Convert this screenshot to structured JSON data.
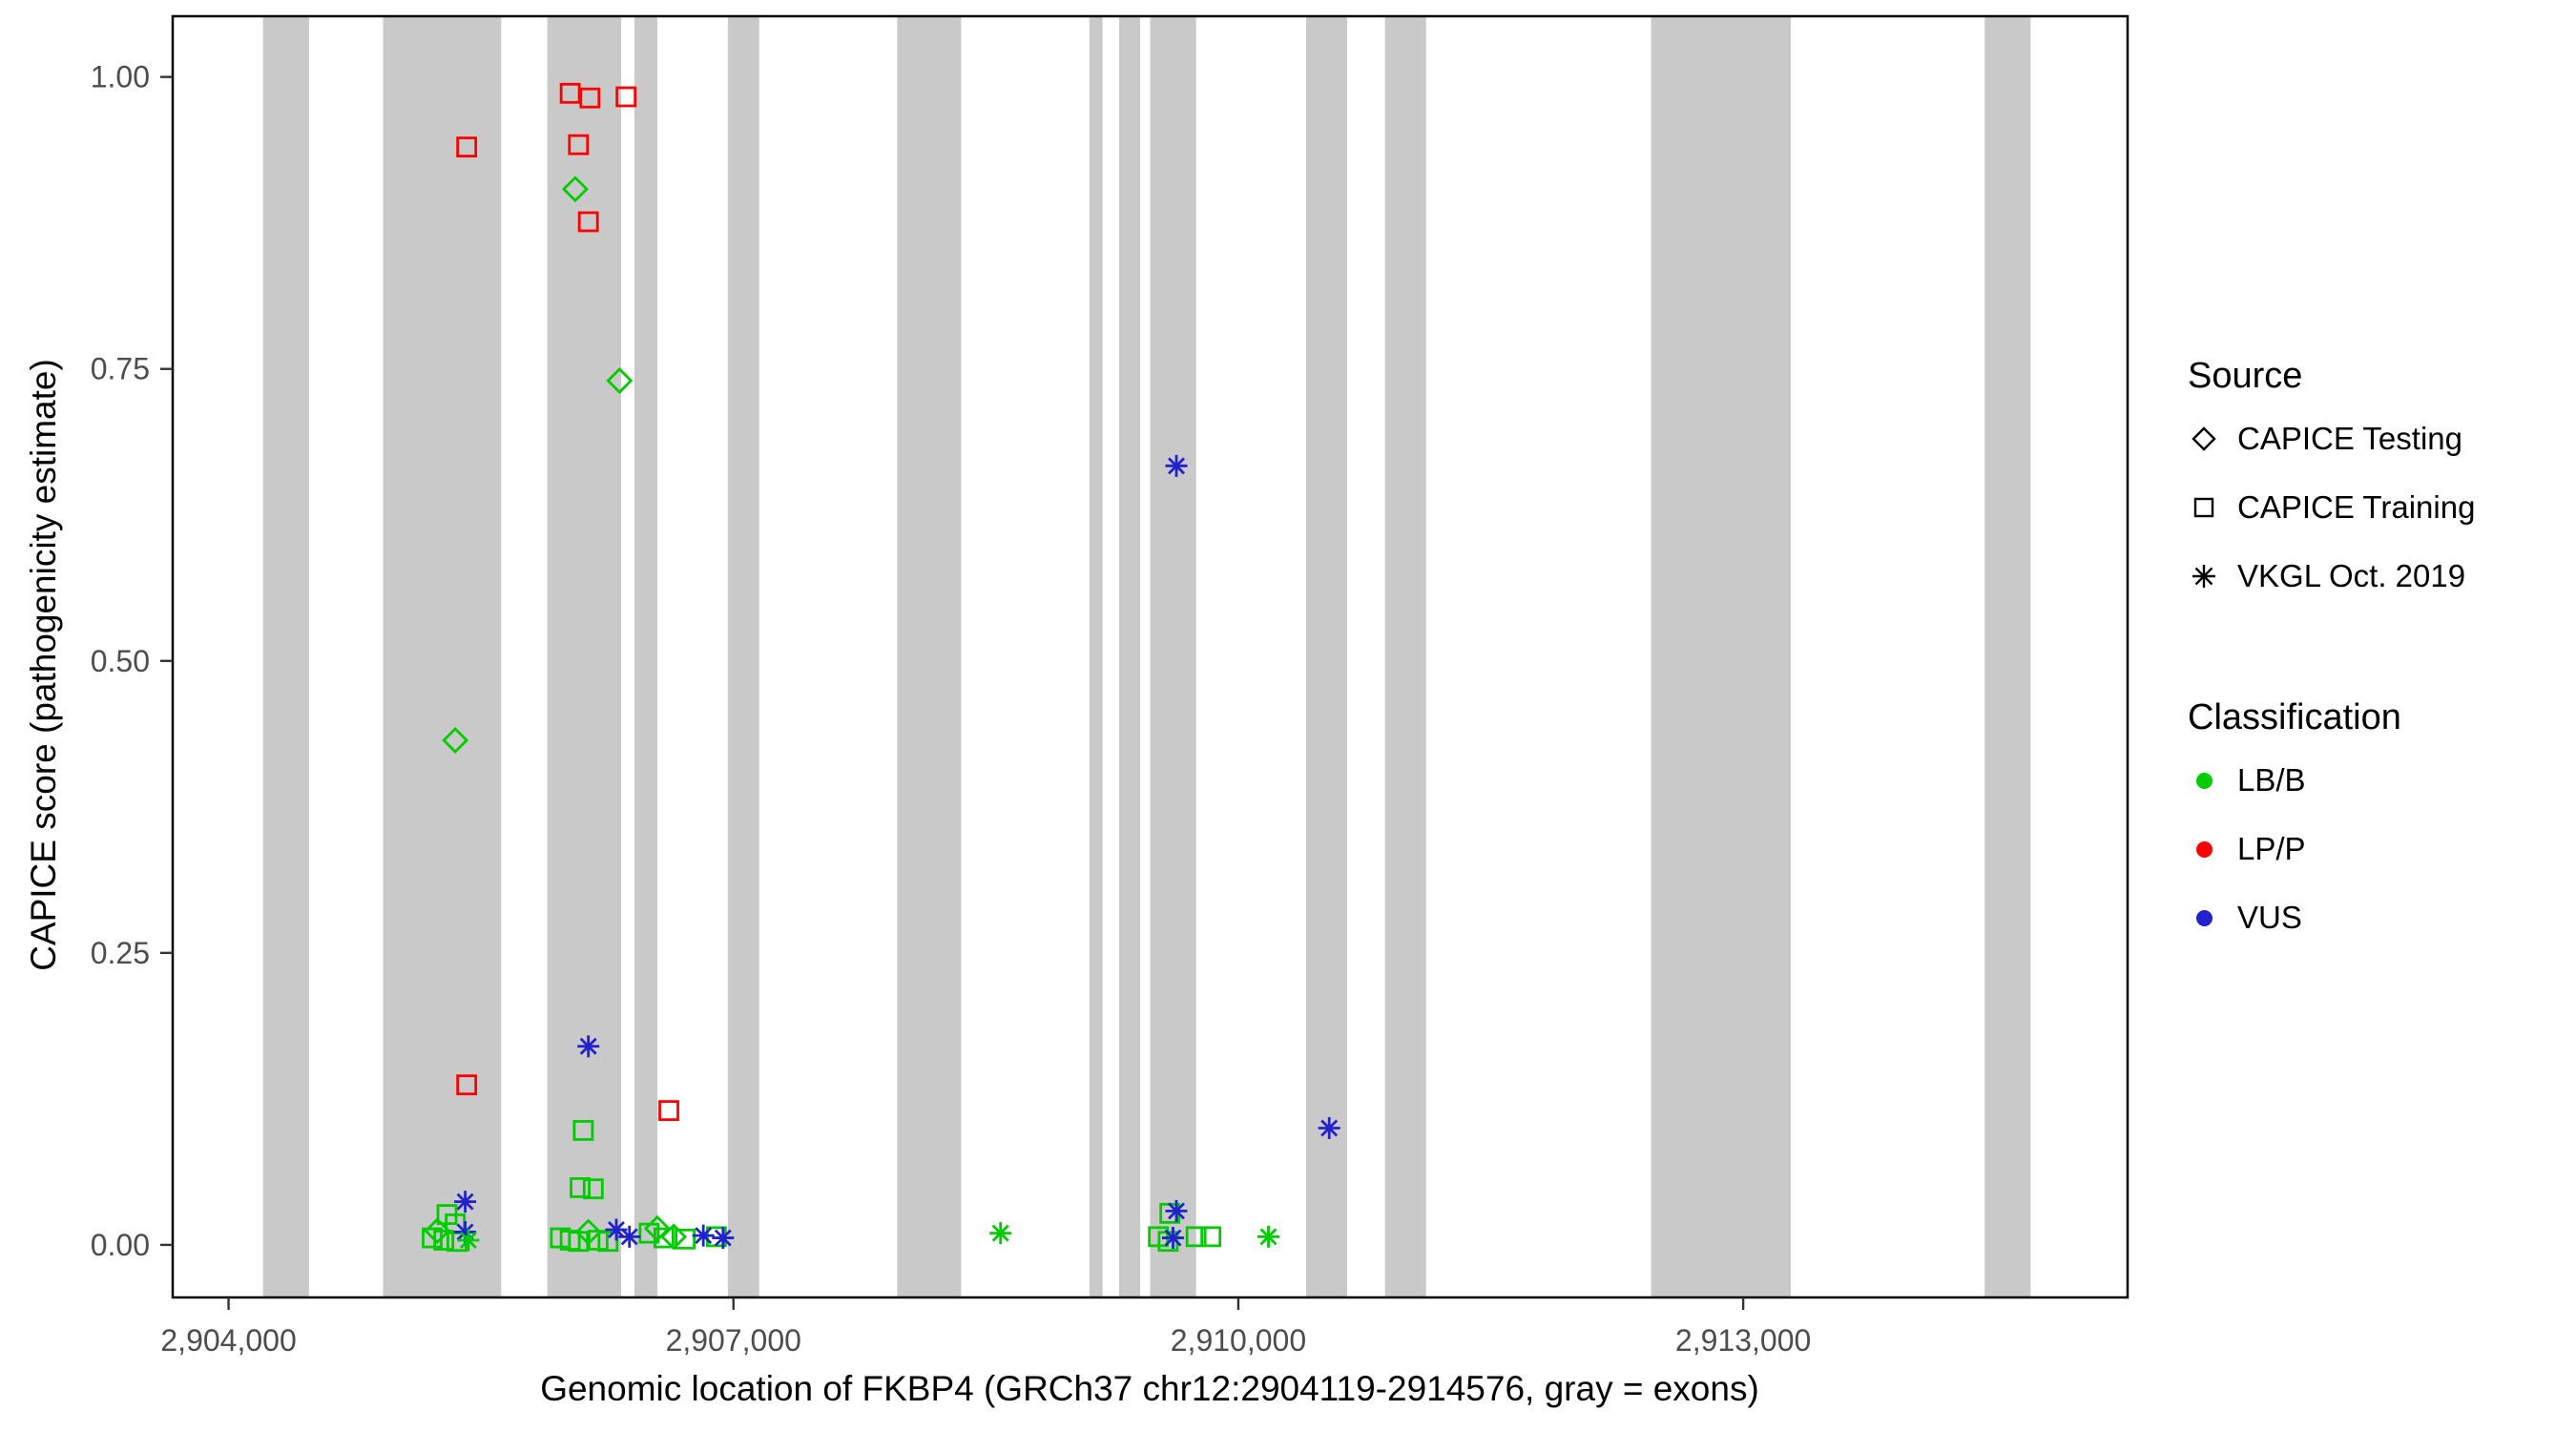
{
  "chart_data": {
    "type": "scatter",
    "title": "",
    "xlabel": "Genomic location of FKBP4 (GRCh37 chr12:2904119-2914576, gray = exons)",
    "ylabel": "CAPICE score (pathogenicity estimate)",
    "xlim": [
      2903668,
      2915284
    ],
    "ylim": [
      -0.045,
      1.052
    ],
    "grid": false,
    "legend_position": "right",
    "x_ticks": [
      {
        "value": 2904000,
        "label": "2,904,000"
      },
      {
        "value": 2907000,
        "label": "2,907,000"
      },
      {
        "value": 2910000,
        "label": "2,910,000"
      },
      {
        "value": 2913000,
        "label": "2,913,000"
      }
    ],
    "y_ticks": [
      {
        "value": 0,
        "label": "0.00"
      },
      {
        "value": 0.25,
        "label": "0.25"
      },
      {
        "value": 0.5,
        "label": "0.50"
      },
      {
        "value": 0.75,
        "label": "0.75"
      },
      {
        "value": 1,
        "label": "1.00"
      }
    ],
    "exon_color": "#C9C9C9",
    "exons": [
      [
        2904205,
        2904478
      ],
      [
        2904918,
        2905620
      ],
      [
        2905894,
        2906333
      ],
      [
        2906411,
        2906548
      ],
      [
        2906967,
        2907153
      ],
      [
        2907973,
        2908353
      ],
      [
        2909115,
        2909193
      ],
      [
        2909291,
        2909417
      ],
      [
        2909476,
        2909749
      ],
      [
        2910403,
        2910647
      ],
      [
        2910872,
        2911116
      ],
      [
        2912453,
        2913283
      ],
      [
        2914435,
        2914708
      ]
    ],
    "points": [
      {
        "x": 2905415,
        "y": 0.94,
        "src": "training",
        "cls": "LP/P"
      },
      {
        "x": 2906030,
        "y": 0.986,
        "src": "training",
        "cls": "LP/P"
      },
      {
        "x": 2906147,
        "y": 0.982,
        "src": "training",
        "cls": "LP/P"
      },
      {
        "x": 2906079,
        "y": 0.942,
        "src": "training",
        "cls": "LP/P"
      },
      {
        "x": 2906362,
        "y": 0.983,
        "src": "training",
        "cls": "LP/P"
      },
      {
        "x": 2906138,
        "y": 0.876,
        "src": "training",
        "cls": "LP/P"
      },
      {
        "x": 2905415,
        "y": 0.137,
        "src": "training",
        "cls": "LP/P"
      },
      {
        "x": 2906616,
        "y": 0.115,
        "src": "training",
        "cls": "LP/P"
      },
      {
        "x": 2906060,
        "y": 0.904,
        "src": "testing",
        "cls": "LB/B"
      },
      {
        "x": 2906323,
        "y": 0.74,
        "src": "testing",
        "cls": "LB/B"
      },
      {
        "x": 2905347,
        "y": 0.432,
        "src": "testing",
        "cls": "LB/B"
      },
      {
        "x": 2905240,
        "y": 0.012,
        "src": "testing",
        "cls": "LB/B"
      },
      {
        "x": 2906138,
        "y": 0.011,
        "src": "testing",
        "cls": "LB/B"
      },
      {
        "x": 2906547,
        "y": 0.014,
        "src": "testing",
        "cls": "LB/B"
      },
      {
        "x": 2906645,
        "y": 0.007,
        "src": "testing",
        "cls": "LB/B"
      },
      {
        "x": 2906108,
        "y": 0.098,
        "src": "training",
        "cls": "LB/B"
      },
      {
        "x": 2906089,
        "y": 0.049,
        "src": "training",
        "cls": "LB/B"
      },
      {
        "x": 2906167,
        "y": 0.048,
        "src": "training",
        "cls": "LB/B"
      },
      {
        "x": 2905298,
        "y": 0.026,
        "src": "training",
        "cls": "LB/B"
      },
      {
        "x": 2905347,
        "y": 0.018,
        "src": "training",
        "cls": "LB/B"
      },
      {
        "x": 2905210,
        "y": 0.006,
        "src": "training",
        "cls": "LB/B"
      },
      {
        "x": 2905279,
        "y": 0.004,
        "src": "training",
        "cls": "LB/B"
      },
      {
        "x": 2905357,
        "y": 0.003,
        "src": "training",
        "cls": "LB/B"
      },
      {
        "x": 2905972,
        "y": 0.006,
        "src": "training",
        "cls": "LB/B"
      },
      {
        "x": 2906030,
        "y": 0.004,
        "src": "training",
        "cls": "LB/B"
      },
      {
        "x": 2906079,
        "y": 0.003,
        "src": "training",
        "cls": "LB/B"
      },
      {
        "x": 2906196,
        "y": 0.004,
        "src": "training",
        "cls": "LB/B"
      },
      {
        "x": 2906255,
        "y": 0.003,
        "src": "training",
        "cls": "LB/B"
      },
      {
        "x": 2906499,
        "y": 0.01,
        "src": "training",
        "cls": "LB/B"
      },
      {
        "x": 2906587,
        "y": 0.006,
        "src": "training",
        "cls": "LB/B"
      },
      {
        "x": 2906713,
        "y": 0.005,
        "src": "training",
        "cls": "LB/B"
      },
      {
        "x": 2906899,
        "y": 0.007,
        "src": "training",
        "cls": "LB/B"
      },
      {
        "x": 2909525,
        "y": 0.007,
        "src": "training",
        "cls": "LB/B"
      },
      {
        "x": 2909583,
        "y": 0.003,
        "src": "training",
        "cls": "LB/B"
      },
      {
        "x": 2909749,
        "y": 0.007,
        "src": "training",
        "cls": "LB/B"
      },
      {
        "x": 2909837,
        "y": 0.007,
        "src": "training",
        "cls": "LB/B"
      },
      {
        "x": 2909593,
        "y": 0.027,
        "src": "training",
        "cls": "LB/B"
      },
      {
        "x": 2909632,
        "y": 0.667,
        "src": "vkgl",
        "cls": "VUS"
      },
      {
        "x": 2906138,
        "y": 0.17,
        "src": "vkgl",
        "cls": "VUS"
      },
      {
        "x": 2910540,
        "y": 0.1,
        "src": "vkgl",
        "cls": "VUS"
      },
      {
        "x": 2905406,
        "y": 0.037,
        "src": "vkgl",
        "cls": "VUS"
      },
      {
        "x": 2905406,
        "y": 0.011,
        "src": "vkgl",
        "cls": "VUS"
      },
      {
        "x": 2906304,
        "y": 0.013,
        "src": "vkgl",
        "cls": "VUS"
      },
      {
        "x": 2906382,
        "y": 0.007,
        "src": "vkgl",
        "cls": "VUS"
      },
      {
        "x": 2906821,
        "y": 0.008,
        "src": "vkgl",
        "cls": "VUS"
      },
      {
        "x": 2906938,
        "y": 0.006,
        "src": "vkgl",
        "cls": "VUS"
      },
      {
        "x": 2909632,
        "y": 0.029,
        "src": "vkgl",
        "cls": "VUS"
      },
      {
        "x": 2909612,
        "y": 0.006,
        "src": "vkgl",
        "cls": "VUS"
      },
      {
        "x": 2908587,
        "y": 0.01,
        "src": "vkgl",
        "cls": "LB/B"
      },
      {
        "x": 2910179,
        "y": 0.007,
        "src": "vkgl",
        "cls": "LB/B"
      },
      {
        "x": 2905425,
        "y": 0.004,
        "src": "vkgl",
        "cls": "LB/B"
      }
    ]
  },
  "colors": {
    "LB/B": "#00CC00",
    "LP/P": "#FF0000",
    "VUS": "#2222CC"
  },
  "legend": {
    "source": {
      "title": "Source",
      "items": [
        {
          "label": "CAPICE Testing",
          "shape": "diamond"
        },
        {
          "label": "CAPICE Training",
          "shape": "square"
        },
        {
          "label": "VKGL Oct. 2019",
          "shape": "asterisk"
        }
      ]
    },
    "classification": {
      "title": "Classification",
      "items": [
        {
          "label": "LB/B",
          "color": "#00CC00"
        },
        {
          "label": "LP/P",
          "color": "#FF0000"
        },
        {
          "label": "VUS",
          "color": "#2222CC"
        }
      ]
    }
  }
}
